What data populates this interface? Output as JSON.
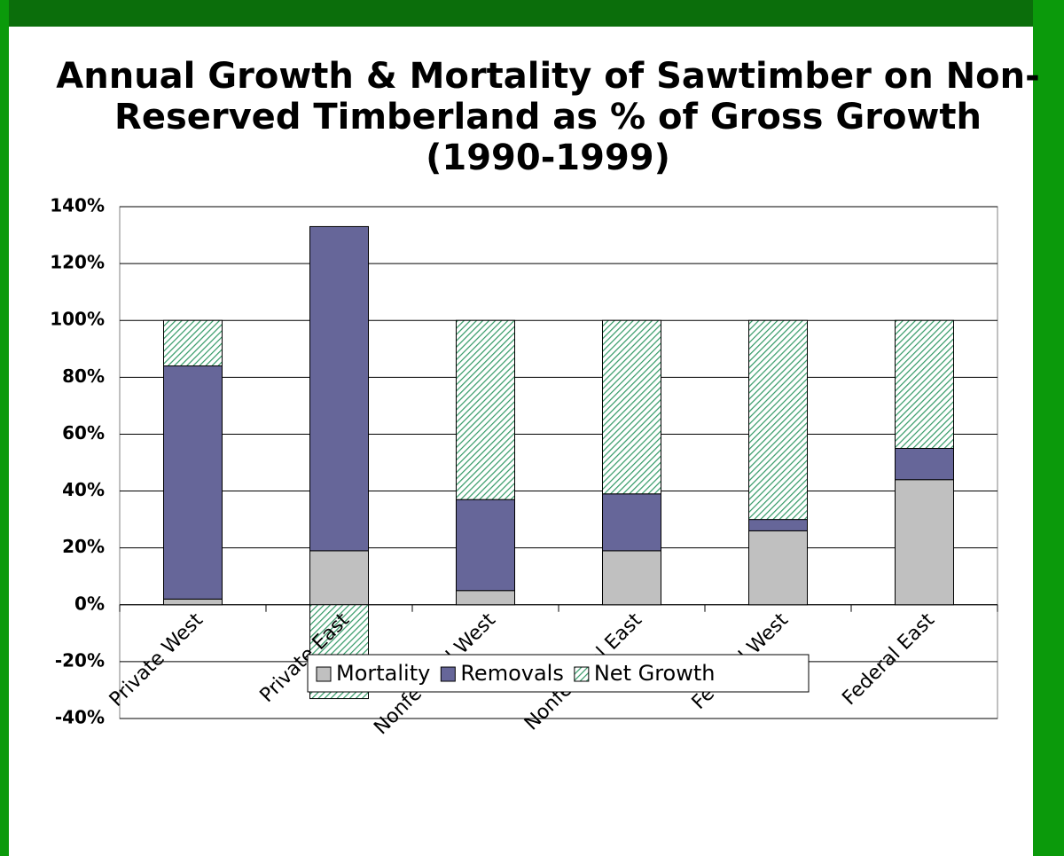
{
  "chart_data": {
    "type": "stacked_bar",
    "title": [
      "Annual Growth & Mortality of Sawtimber on Non-",
      "Reserved Timberland as % of Gross Growth",
      "(1990-1999)"
    ],
    "categories": [
      "Private West",
      "Private East",
      "Nonfederal West",
      "Nonfederal East",
      "Federal West",
      "Federal East"
    ],
    "series": [
      {
        "name": "Mortality",
        "color": "#c0c0c0",
        "values": [
          2,
          19,
          5,
          19,
          26,
          44
        ]
      },
      {
        "name": "Removals",
        "color": "#666699",
        "values": [
          82,
          114,
          32,
          20,
          4,
          11
        ]
      },
      {
        "name": "Net Growth",
        "color": "#339966",
        "values": [
          16,
          -33,
          63,
          61,
          70,
          45
        ]
      }
    ],
    "ylim": [
      -40,
      140
    ],
    "yticks": [
      {
        "value": -40,
        "label": "-40%"
      },
      {
        "value": -20,
        "label": "-20%"
      },
      {
        "value": 0,
        "label": "0%"
      },
      {
        "value": 20,
        "label": "20%"
      },
      {
        "value": 40,
        "label": "40%"
      },
      {
        "value": 60,
        "label": "60%"
      },
      {
        "value": 80,
        "label": "80%"
      },
      {
        "value": 100,
        "label": "100%"
      },
      {
        "value": 120,
        "label": "120%"
      },
      {
        "value": 140,
        "label": "140%"
      }
    ],
    "grid": true,
    "legend": "bottom"
  }
}
